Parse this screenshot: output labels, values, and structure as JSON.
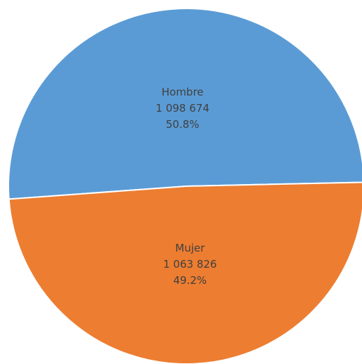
{
  "chart_data": {
    "type": "pie",
    "title": "",
    "slices": [
      {
        "name": "Hombre",
        "value": 1098674,
        "value_label": "1 098 674",
        "percent_label": "50.8%",
        "color": "#5b9bd5"
      },
      {
        "name": "Mujer",
        "value": 1063826,
        "value_label": "1 063 826",
        "percent_label": "49.2%",
        "color": "#ed7d31"
      }
    ],
    "legend": "none",
    "slice_border_color": "#ffffff"
  }
}
